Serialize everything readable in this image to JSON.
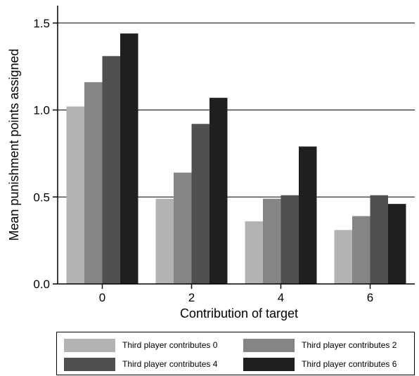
{
  "chart_data": {
    "type": "bar",
    "xlabel": "Contribution of target",
    "ylabel": "Mean punishment points assigned",
    "categories": [
      "0",
      "2",
      "4",
      "6"
    ],
    "ylim": [
      0,
      1.6
    ],
    "yticks": [
      0.0,
      0.5,
      1.0,
      1.5
    ],
    "ytick_labels": [
      "0.0",
      "0.5",
      "1.0",
      "1.5"
    ],
    "grid": "horizontal",
    "legend_position": "bottom",
    "series": [
      {
        "name": "Third player contributes 0",
        "color": "#b3b3b3",
        "values": [
          1.02,
          0.49,
          0.36,
          0.31
        ]
      },
      {
        "name": "Third player contributes 2",
        "color": "#858585",
        "values": [
          1.16,
          0.64,
          0.49,
          0.39
        ]
      },
      {
        "name": "Third player contributes 4",
        "color": "#505050",
        "values": [
          1.31,
          0.92,
          0.51,
          0.51
        ]
      },
      {
        "name": "Third player contributes 6",
        "color": "#1f1f1f",
        "values": [
          1.44,
          1.07,
          0.79,
          0.46
        ]
      }
    ]
  }
}
